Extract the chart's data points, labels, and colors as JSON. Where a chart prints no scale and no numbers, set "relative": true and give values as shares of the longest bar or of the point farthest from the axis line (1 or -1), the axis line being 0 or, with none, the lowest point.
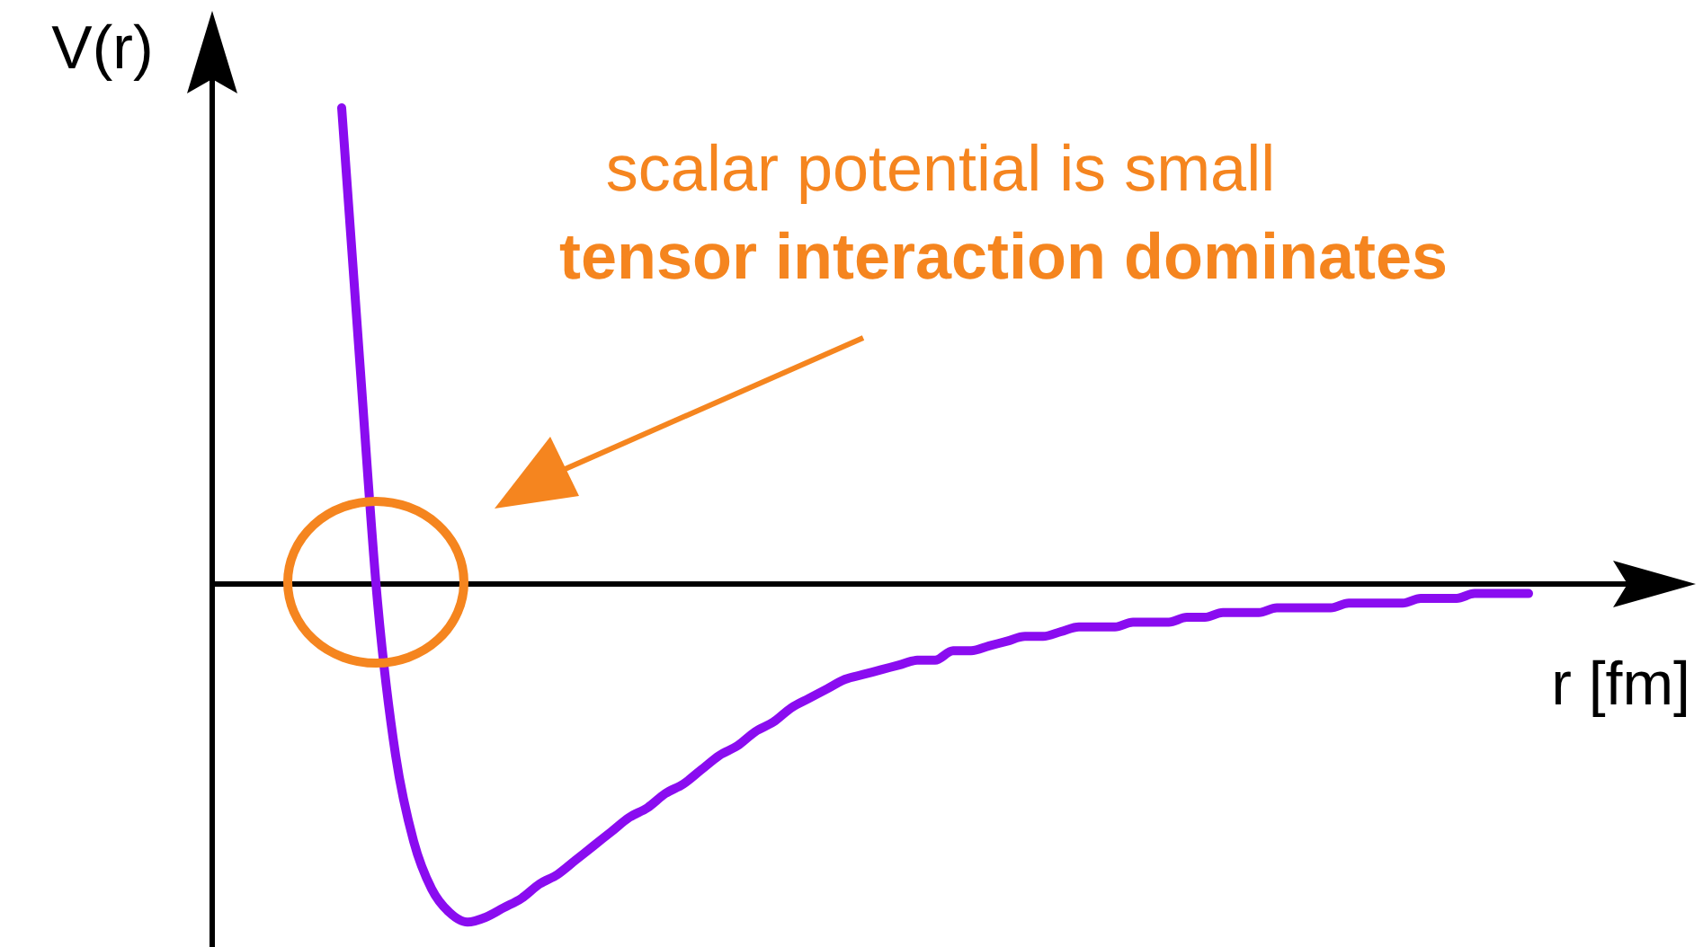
{
  "chart_data": {
    "type": "line",
    "relative": true,
    "xlabel": "r [fm]",
    "ylabel": "V(r)",
    "tick_labels": false,
    "marker": "none",
    "line_style": "solid",
    "categories": [
      null,
      null,
      null,
      null,
      null,
      null,
      null,
      null,
      null,
      null,
      null,
      null,
      null,
      null,
      null,
      null,
      null,
      null,
      null,
      null,
      null,
      null,
      null,
      null,
      null,
      null,
      null,
      null,
      null,
      null,
      null,
      null,
      null,
      null,
      null,
      null,
      null,
      null,
      null,
      null,
      null,
      null,
      null,
      null,
      null,
      null,
      null,
      null,
      null,
      null,
      null,
      null,
      null,
      null,
      null,
      null,
      null,
      null,
      null,
      null,
      null,
      null,
      null,
      null,
      null,
      null,
      null
    ],
    "series": [
      {
        "color": "#8a0cf0",
        "values": [
          1,
          0.47,
          -0.04,
          -0.36,
          -0.54,
          -0.64,
          -0.69,
          -0.71,
          -0.7,
          -0.68,
          -0.66,
          -0.63,
          -0.61,
          -0.58,
          -0.55,
          -0.52,
          -0.49,
          -0.47,
          -0.44,
          -0.42,
          -0.39,
          -0.36,
          -0.34,
          -0.31,
          -0.29,
          -0.26,
          -0.24,
          -0.22,
          -0.2,
          -0.19,
          -0.18,
          -0.17,
          -0.16,
          -0.16,
          -0.14,
          -0.14,
          -0.13,
          -0.12,
          -0.11,
          -0.11,
          -0.1,
          -0.09,
          -0.09,
          -0.09,
          -0.08,
          -0.08,
          -0.08,
          -0.07,
          -0.07,
          -0.06,
          -0.06,
          -0.06,
          -0.05,
          -0.05,
          -0.05,
          -0.05,
          -0.04,
          -0.04,
          -0.04,
          -0.04,
          -0.03,
          -0.03,
          -0.03,
          -0.02,
          -0.02,
          -0.02,
          -0.02
        ]
      }
    ],
    "annotations": [
      "scalar potential is small",
      "tensor interaction dominates"
    ]
  }
}
